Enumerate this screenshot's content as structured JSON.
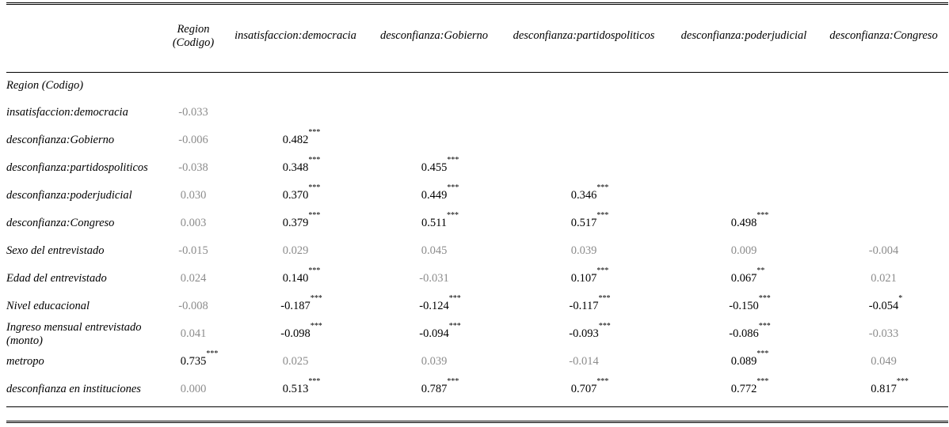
{
  "table": {
    "columns": [
      "Region\n(Codigo)",
      "insatisfaccion:democracia",
      "desconfianza:Gobierno",
      "desconfianza:partidospoliticos",
      "desconfianza:poderjudicial",
      "desconfianza:Congreso"
    ],
    "rows": [
      {
        "label": "Region (Codigo)",
        "cells": [
          {
            "v": "",
            "s": ""
          },
          {
            "v": "",
            "s": ""
          },
          {
            "v": "",
            "s": ""
          },
          {
            "v": "",
            "s": ""
          },
          {
            "v": "",
            "s": ""
          },
          {
            "v": "",
            "s": ""
          }
        ]
      },
      {
        "label": "insatisfaccion:democracia",
        "cells": [
          {
            "v": "-0.033",
            "s": ""
          },
          {
            "v": "",
            "s": ""
          },
          {
            "v": "",
            "s": ""
          },
          {
            "v": "",
            "s": ""
          },
          {
            "v": "",
            "s": ""
          },
          {
            "v": "",
            "s": ""
          }
        ]
      },
      {
        "label": "desconfianza:Gobierno",
        "cells": [
          {
            "v": "-0.006",
            "s": ""
          },
          {
            "v": "0.482",
            "s": "***"
          },
          {
            "v": "",
            "s": ""
          },
          {
            "v": "",
            "s": ""
          },
          {
            "v": "",
            "s": ""
          },
          {
            "v": "",
            "s": ""
          }
        ]
      },
      {
        "label": "desconfianza:partidospoliticos",
        "cells": [
          {
            "v": "-0.038",
            "s": ""
          },
          {
            "v": "0.348",
            "s": "***"
          },
          {
            "v": "0.455",
            "s": "***"
          },
          {
            "v": "",
            "s": ""
          },
          {
            "v": "",
            "s": ""
          },
          {
            "v": "",
            "s": ""
          }
        ]
      },
      {
        "label": "desconfianza:poderjudicial",
        "cells": [
          {
            "v": "0.030",
            "s": ""
          },
          {
            "v": "0.370",
            "s": "***"
          },
          {
            "v": "0.449",
            "s": "***"
          },
          {
            "v": "0.346",
            "s": "***"
          },
          {
            "v": "",
            "s": ""
          },
          {
            "v": "",
            "s": ""
          }
        ]
      },
      {
        "label": "desconfianza:Congreso",
        "cells": [
          {
            "v": "0.003",
            "s": ""
          },
          {
            "v": "0.379",
            "s": "***"
          },
          {
            "v": "0.511",
            "s": "***"
          },
          {
            "v": "0.517",
            "s": "***"
          },
          {
            "v": "0.498",
            "s": "***"
          },
          {
            "v": "",
            "s": ""
          }
        ]
      },
      {
        "label": "Sexo del entrevistado",
        "cells": [
          {
            "v": "-0.015",
            "s": ""
          },
          {
            "v": "0.029",
            "s": ""
          },
          {
            "v": "0.045",
            "s": ""
          },
          {
            "v": "0.039",
            "s": ""
          },
          {
            "v": "0.009",
            "s": ""
          },
          {
            "v": "-0.004",
            "s": ""
          }
        ]
      },
      {
        "label": "Edad del entrevistado",
        "cells": [
          {
            "v": "0.024",
            "s": ""
          },
          {
            "v": "0.140",
            "s": "***"
          },
          {
            "v": "-0.031",
            "s": ""
          },
          {
            "v": "0.107",
            "s": "***"
          },
          {
            "v": "0.067",
            "s": "**"
          },
          {
            "v": "0.021",
            "s": ""
          }
        ]
      },
      {
        "label": "Nivel educacional",
        "cells": [
          {
            "v": "-0.008",
            "s": ""
          },
          {
            "v": "-0.187",
            "s": "***"
          },
          {
            "v": "-0.124",
            "s": "***"
          },
          {
            "v": "-0.117",
            "s": "***"
          },
          {
            "v": "-0.150",
            "s": "***"
          },
          {
            "v": "-0.054",
            "s": "*"
          }
        ]
      },
      {
        "label": "Ingreso mensual entrevistado (monto)",
        "cells": [
          {
            "v": "0.041",
            "s": ""
          },
          {
            "v": "-0.098",
            "s": "***"
          },
          {
            "v": "-0.094",
            "s": "***"
          },
          {
            "v": "-0.093",
            "s": "***"
          },
          {
            "v": "-0.086",
            "s": "***"
          },
          {
            "v": "-0.033",
            "s": ""
          }
        ]
      },
      {
        "label": "metropo",
        "cells": [
          {
            "v": "0.735",
            "s": "***"
          },
          {
            "v": "0.025",
            "s": ""
          },
          {
            "v": "0.039",
            "s": ""
          },
          {
            "v": "-0.014",
            "s": ""
          },
          {
            "v": "0.089",
            "s": "***"
          },
          {
            "v": "0.049",
            "s": ""
          }
        ]
      },
      {
        "label": "desconfianza en instituciones",
        "cells": [
          {
            "v": "0.000",
            "s": ""
          },
          {
            "v": "0.513",
            "s": "***"
          },
          {
            "v": "0.787",
            "s": "***"
          },
          {
            "v": "0.707",
            "s": "***"
          },
          {
            "v": "0.772",
            "s": "***"
          },
          {
            "v": "0.817",
            "s": "***"
          }
        ]
      }
    ]
  }
}
